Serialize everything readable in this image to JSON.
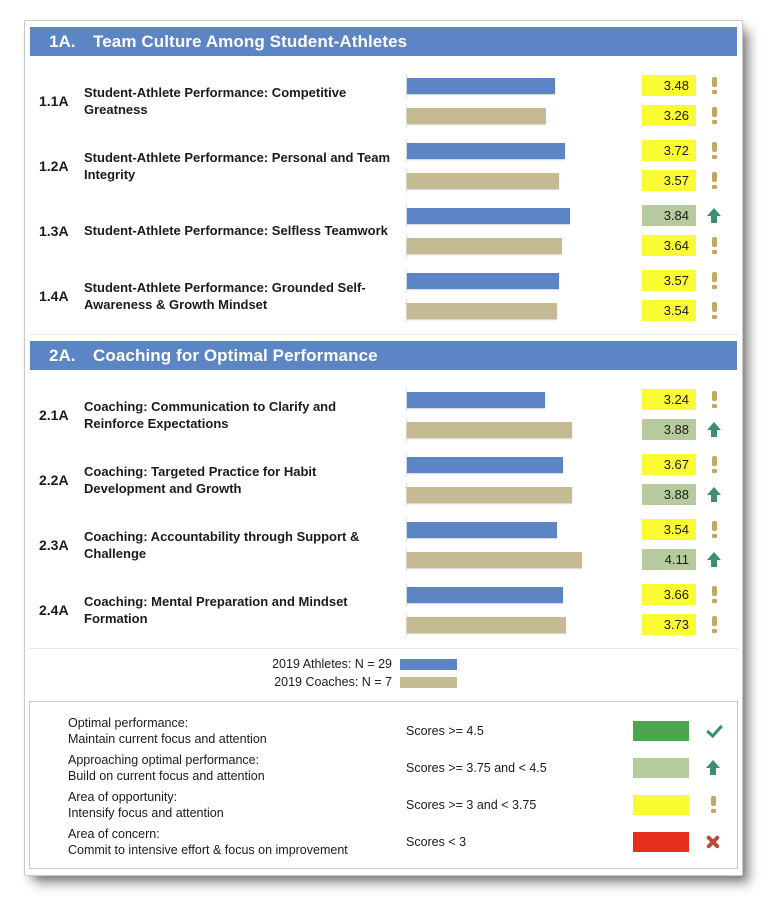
{
  "colors": {
    "section_header_blue": "#5C85C5",
    "athletes_bar": "#5C85C5",
    "coaches_bar": "#C4BB93",
    "badge_yellow": "#FBFB34",
    "badge_light_green": "#B6CA9D",
    "key_green": "#4CA64E",
    "key_light_green": "#B6CA9D",
    "key_yellow": "#FBFB34",
    "key_red": "#E7301C",
    "icon_teal": "#3D8D74",
    "icon_tan": "#C3A661",
    "icon_x_red": "#B74A3D"
  },
  "sections": [
    {
      "id": "1A.",
      "title": "Team Culture Among Student-Athletes",
      "rows": [
        {
          "id": "1.1A",
          "title": "Student-Athlete Performance: Competitive Greatness",
          "athletes": {
            "score": "3.48",
            "value": 3.48,
            "status": "opportunity"
          },
          "coaches": {
            "score": "3.26",
            "value": 3.26,
            "status": "opportunity"
          }
        },
        {
          "id": "1.2A",
          "title": "Student-Athlete Performance: Personal and Team Integrity",
          "athletes": {
            "score": "3.72",
            "value": 3.72,
            "status": "opportunity"
          },
          "coaches": {
            "score": "3.57",
            "value": 3.57,
            "status": "opportunity"
          }
        },
        {
          "id": "1.3A",
          "title": "Student-Athlete Performance: Selfless Teamwork",
          "athletes": {
            "score": "3.84",
            "value": 3.84,
            "status": "approaching"
          },
          "coaches": {
            "score": "3.64",
            "value": 3.64,
            "status": "opportunity"
          }
        },
        {
          "id": "1.4A",
          "title": "Student-Athlete Performance: Grounded Self-Awareness & Growth Mindset",
          "athletes": {
            "score": "3.57",
            "value": 3.57,
            "status": "opportunity"
          },
          "coaches": {
            "score": "3.54",
            "value": 3.54,
            "status": "opportunity"
          }
        }
      ]
    },
    {
      "id": "2A.",
      "title": "Coaching for Optimal Performance",
      "rows": [
        {
          "id": "2.1A",
          "title": "Coaching: Communication to Clarify and Reinforce Expectations",
          "athletes": {
            "score": "3.24",
            "value": 3.24,
            "status": "opportunity"
          },
          "coaches": {
            "score": "3.88",
            "value": 3.88,
            "status": "approaching"
          }
        },
        {
          "id": "2.2A",
          "title": "Coaching: Targeted Practice for Habit Development and Growth",
          "athletes": {
            "score": "3.67",
            "value": 3.67,
            "status": "opportunity"
          },
          "coaches": {
            "score": "3.88",
            "value": 3.88,
            "status": "approaching"
          }
        },
        {
          "id": "2.3A",
          "title": "Coaching: Accountability through Support & Challenge",
          "athletes": {
            "score": "3.54",
            "value": 3.54,
            "status": "opportunity"
          },
          "coaches": {
            "score": "4.11",
            "value": 4.11,
            "status": "approaching"
          }
        },
        {
          "id": "2.4A",
          "title": "Coaching: Mental Preparation and Mindset Formation",
          "athletes": {
            "score": "3.66",
            "value": 3.66,
            "status": "opportunity"
          },
          "coaches": {
            "score": "3.73",
            "value": 3.73,
            "status": "opportunity"
          }
        }
      ]
    }
  ],
  "legend": {
    "athletes_label": "2019 Athletes: N = 29",
    "coaches_label": "2019 Coaches: N = 7"
  },
  "key": {
    "rows": [
      {
        "title": "Optimal performance:",
        "subtitle": "Maintain current focus and attention",
        "range": "Scores >= 4.5",
        "color": "#4CA64E",
        "icon": "check"
      },
      {
        "title": "Approaching optimal performance:",
        "subtitle": "Build on current focus and attention",
        "range": "Scores >= 3.75 and < 4.5",
        "color": "#B6CA9D",
        "icon": "up-arrow"
      },
      {
        "title": "Area of opportunity:",
        "subtitle": "Intensify focus and attention",
        "range": "Scores >= 3 and < 3.75",
        "color": "#FBFB34",
        "icon": "exclamation"
      },
      {
        "title": "Area of concern:",
        "subtitle": "Commit to intensive effort & focus on improvement",
        "range": "Scores < 3",
        "color": "#E7301C",
        "icon": "x"
      }
    ]
  },
  "chart_data": {
    "type": "bar",
    "orientation": "horizontal",
    "title": "1A. Team Culture Among Student-Athletes / 2A. Coaching for Optimal Performance",
    "categories": [
      "1.1A Student-Athlete Performance: Competitive Greatness",
      "1.2A Student-Athlete Performance: Personal and Team Integrity",
      "1.3A Student-Athlete Performance: Selfless Teamwork",
      "1.4A Student-Athlete Performance: Grounded Self-Awareness & Growth Mindset",
      "2.1A Coaching: Communication to Clarify and Reinforce Expectations",
      "2.2A Coaching: Targeted Practice for Habit Development and Growth",
      "2.3A Coaching: Accountability through Support & Challenge",
      "2.4A Coaching: Mental Preparation and Mindset Formation"
    ],
    "series": [
      {
        "name": "2019 Athletes: N = 29",
        "color": "#5C85C5",
        "values": [
          3.48,
          3.72,
          3.84,
          3.57,
          3.24,
          3.67,
          3.54,
          3.66
        ]
      },
      {
        "name": "2019 Coaches: N = 7",
        "color": "#C4BB93",
        "values": [
          3.26,
          3.57,
          3.64,
          3.54,
          3.88,
          3.88,
          4.11,
          3.73
        ]
      }
    ],
    "xlim": [
      0,
      5
    ],
    "grid": false,
    "legend_position": "bottom",
    "value_status_thresholds": {
      "optimal": "score >= 4.5",
      "approaching": "3.75 <= score < 4.5",
      "opportunity": "3 <= score < 3.75",
      "concern": "score < 3"
    }
  }
}
